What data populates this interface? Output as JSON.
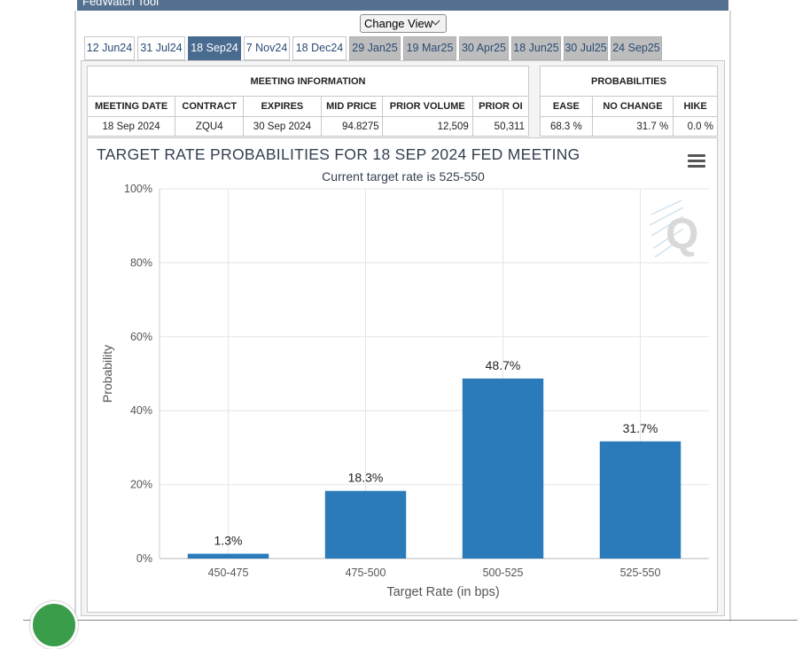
{
  "header": {
    "title": "FedWatch Tool"
  },
  "change_view": {
    "label": "Change View"
  },
  "tabs": [
    {
      "label": "12 Jun24",
      "state": "past"
    },
    {
      "label": "31 Jul24",
      "state": "past"
    },
    {
      "label": "18 Sep24",
      "state": "active"
    },
    {
      "label": "7 Nov24",
      "state": "past"
    },
    {
      "label": "18 Dec24",
      "state": "past"
    },
    {
      "label": "29 Jan25",
      "state": "future"
    },
    {
      "label": "19 Mar25",
      "state": "future"
    },
    {
      "label": "30 Apr25",
      "state": "future"
    },
    {
      "label": "18 Jun25",
      "state": "future"
    },
    {
      "label": "30 Jul25",
      "state": "future"
    },
    {
      "label": "24 Sep25",
      "state": "future"
    }
  ],
  "meeting_info": {
    "title": "MEETING INFORMATION",
    "headers": [
      "MEETING DATE",
      "CONTRACT",
      "EXPIRES",
      "MID PRICE",
      "PRIOR VOLUME",
      "PRIOR OI"
    ],
    "values": [
      "18 Sep 2024",
      "ZQU4",
      "30 Sep 2024",
      "94.8275",
      "12,509",
      "50,311"
    ]
  },
  "probabilities": {
    "title": "PROBABILITIES",
    "headers": [
      "EASE",
      "NO CHANGE",
      "HIKE"
    ],
    "values": [
      "68.3 %",
      "31.7 %",
      "0.0 %"
    ]
  },
  "chart_data": {
    "type": "bar",
    "title": "TARGET RATE PROBABILITIES FOR 18 SEP 2024 FED MEETING",
    "subtitle": "Current target rate is 525-550",
    "xlabel": "Target Rate (in bps)",
    "ylabel": "Probability",
    "categories": [
      "450-475",
      "475-500",
      "500-525",
      "525-550"
    ],
    "values": [
      1.3,
      18.3,
      48.7,
      31.7
    ],
    "data_labels": [
      "1.3%",
      "18.3%",
      "48.7%",
      "31.7%"
    ],
    "ylim": [
      0,
      100
    ],
    "yticks": [
      0,
      20,
      40,
      60,
      80,
      100
    ],
    "ytick_labels": [
      "0%",
      "20%",
      "40%",
      "60%",
      "80%",
      "100%"
    ],
    "bar_color": "#2b7bba",
    "grid": true,
    "legend": "none"
  },
  "colors": {
    "header_bar": "#56718f",
    "active_tab": "#4a6b90",
    "future_tab": "#bdbdbd",
    "bar": "#2b7bba"
  }
}
